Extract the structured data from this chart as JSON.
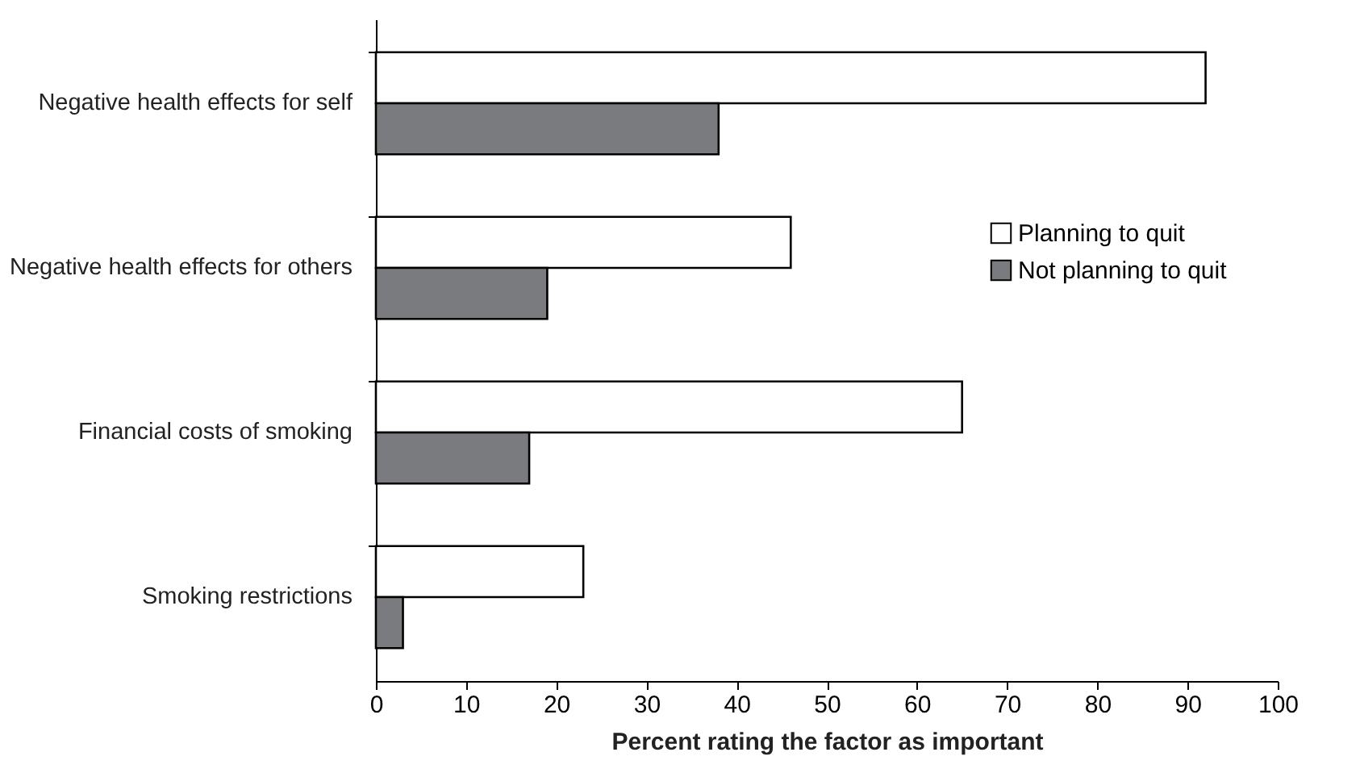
{
  "chart_data": {
    "type": "bar",
    "orientation": "horizontal",
    "xlabel": "Percent rating the factor as important",
    "categories": [
      "Negative health effects for self",
      "Negative health effects for others",
      "Financial costs of smoking",
      "Smoking restrictions"
    ],
    "series": [
      {
        "name": "Planning to quit",
        "color": "#ffffff",
        "values": [
          92,
          46,
          65,
          23
        ]
      },
      {
        "name": "Not planning to quit",
        "color": "#7a7b7e",
        "values": [
          38,
          19,
          17,
          3
        ]
      }
    ],
    "xlim": [
      0,
      100
    ],
    "xticks": [
      0,
      10,
      20,
      30,
      40,
      50,
      60,
      70,
      80,
      90,
      100
    ],
    "grid": false,
    "legend": "right"
  }
}
